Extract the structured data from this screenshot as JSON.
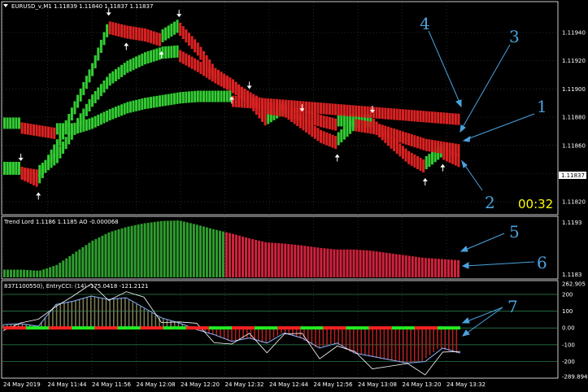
{
  "header": {
    "symbol_title": "EURUSD_v,M1  1.11839 1.11840 1.11837 1.11837"
  },
  "countdown": "00:32",
  "price_badge": "1.11837",
  "callouts": [
    "1",
    "2",
    "3",
    "4",
    "5",
    "6",
    "7"
  ],
  "colors": {
    "background": "#000000",
    "bull": "#33cc33",
    "bear": "#dd2222",
    "callout": "#4aa3df",
    "timer": "#ffff00"
  },
  "chart_data": [
    {
      "type": "line",
      "panel": "price",
      "ylim": [
        1.11812,
        1.11955
      ],
      "y_ticks": [
        "1.11940",
        "1.11920",
        "1.11900",
        "1.11880",
        "1.11860",
        "1.11840",
        "1.11820"
      ],
      "x_ticks": [
        "24 May 2019",
        "24 May 11:44",
        "24 May 11:56",
        "24 May 12:08",
        "24 May 12:20",
        "24 May 12:32",
        "24 May 12:44",
        "24 May 12:56",
        "24 May 13:08",
        "24 May 13:20",
        "24 May 13:32"
      ],
      "series": [
        {
          "values": [
            1.11842,
            1.11842,
            1.11836,
            1.11858,
            1.11885,
            1.11912,
            1.11945,
            1.11942,
            1.1194,
            1.11936,
            1.11944,
            1.1193,
            1.11912,
            1.11904,
            1.11893,
            1.11878,
            1.11886,
            1.11877,
            1.11868,
            1.11863,
            1.11875,
            1.11876,
            1.11864,
            1.11853,
            1.11846,
            1.11856,
            1.1185
          ]
        },
        {
          "values": [
            1.11842,
            1.11842,
            1.1184,
            1.1185,
            1.1187,
            1.1189,
            1.11905,
            1.11914,
            1.1192,
            1.11924,
            1.11925,
            1.11918,
            1.1191,
            1.11903,
            1.11895,
            1.11888,
            1.11886,
            1.11883,
            1.11879,
            1.11876,
            1.11876,
            1.11874,
            1.1187,
            1.11866,
            1.11862,
            1.1186,
            1.11858
          ]
        },
        {
          "values": [
            1.11874,
            1.11874,
            1.11872,
            1.1187,
            1.1187,
            1.11874,
            1.1188,
            1.11885,
            1.11888,
            1.1189,
            1.11892,
            1.11893,
            1.11893,
            1.11893,
            1.11892,
            1.11891,
            1.1189,
            1.11889,
            1.11888,
            1.11887,
            1.11886,
            1.11885,
            1.11884,
            1.11883,
            1.11882,
            1.11881,
            1.1188
          ]
        }
      ],
      "arrows_up": [
        2,
        7,
        9,
        13,
        19,
        24,
        25
      ],
      "arrows_down": [
        1,
        6,
        10,
        14,
        17,
        21
      ]
    },
    {
      "type": "bar",
      "panel": "trend_lord",
      "title": "Trend Lord 1.1186 1.1185  AO -0.000068",
      "ylim": [
        1.1183,
        1.1193
      ],
      "y_ticks": [
        "1.1193",
        "1.1183"
      ]
    },
    {
      "type": "bar",
      "panel": "entry_cci",
      "title": "8371100550), EntryCCI: (14) -175.0418 -121.2121",
      "ylim": [
        -289.8941,
        262.905
      ],
      "y_ticks": [
        "262.905",
        "200",
        "100",
        "0.00",
        "-100",
        "-200",
        "-289.8941"
      ],
      "values": [
        20,
        25,
        10,
        140,
        160,
        190,
        170,
        180,
        120,
        60,
        30,
        -10,
        -40,
        -80,
        -60,
        -90,
        -30,
        -60,
        -120,
        -90,
        -150,
        -170,
        -190,
        -210,
        -200,
        -120,
        -150
      ]
    }
  ]
}
